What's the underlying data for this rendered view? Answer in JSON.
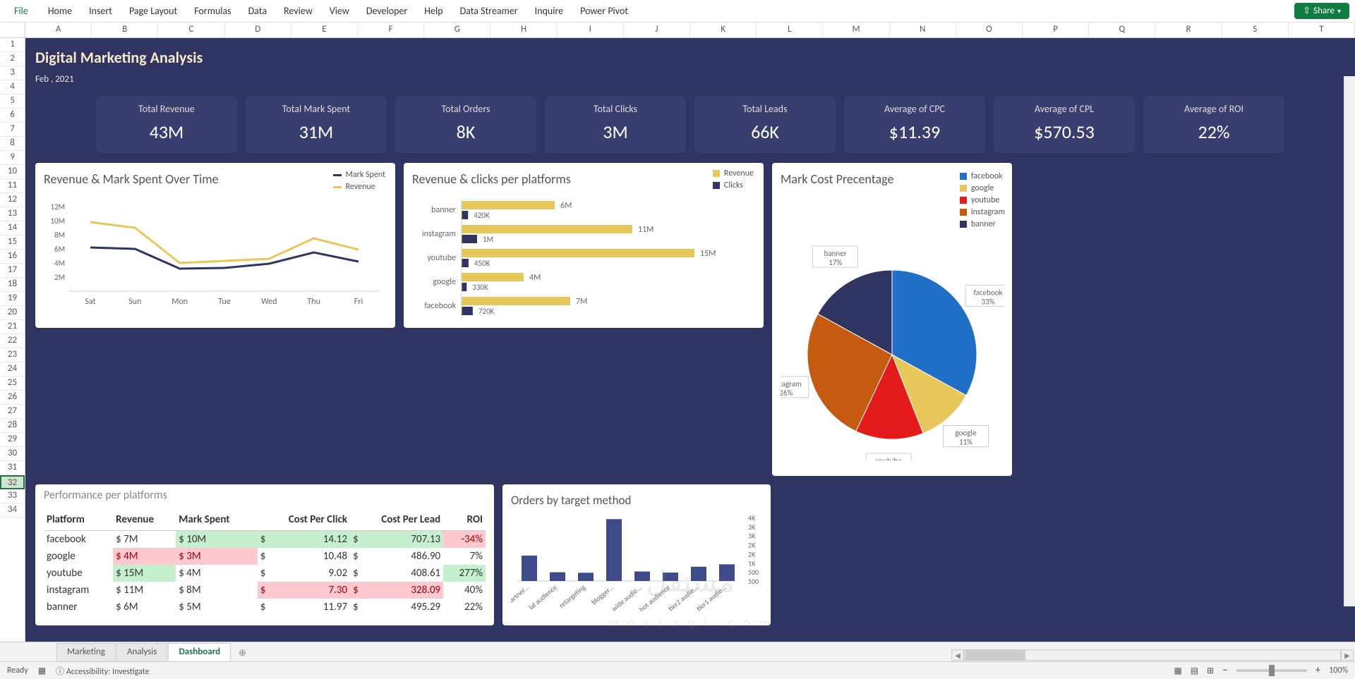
{
  "ribbon": {
    "file": "File",
    "tabs": [
      "Home",
      "Insert",
      "Page Layout",
      "Formulas",
      "Data",
      "Review",
      "View",
      "Developer",
      "Help",
      "Data Streamer",
      "Inquire",
      "Power Pivot"
    ],
    "share": "Share"
  },
  "columns": [
    "A",
    "B",
    "C",
    "D",
    "E",
    "F",
    "G",
    "H",
    "I",
    "J",
    "K",
    "L",
    "M",
    "N",
    "O",
    "P",
    "Q",
    "R",
    "S",
    "T"
  ],
  "rows": 34,
  "selected_row": 32,
  "header": {
    "title": "Digital Marketing Analysis",
    "date": "Feb , 2021"
  },
  "kpis": [
    {
      "label": "Total Revenue",
      "value": "43M"
    },
    {
      "label": "Total Mark Spent",
      "value": "31M"
    },
    {
      "label": "Total Orders",
      "value": "8K"
    },
    {
      "label": "Total Clicks",
      "value": "3M"
    },
    {
      "label": "Total Leads",
      "value": "66K"
    },
    {
      "label": "Average of CPC",
      "value": "$11.39"
    },
    {
      "label": "Average of CPL",
      "value": "$570.53"
    },
    {
      "label": "Average of ROI",
      "value": "22%"
    }
  ],
  "line_chart": {
    "title": "Revenue & Mark Spent Over Time",
    "categories": [
      "Sat",
      "Sun",
      "Mon",
      "Tue",
      "Wed",
      "Thu",
      "Fri"
    ],
    "y_ticks": [
      "2M",
      "4M",
      "6M",
      "8M",
      "10M",
      "12M"
    ],
    "series": [
      {
        "name": "Mark Spent",
        "color": "#2f3560",
        "values": [
          6.2,
          6.0,
          3.2,
          3.3,
          3.9,
          5.5,
          4.2
        ]
      },
      {
        "name": "Revenue",
        "color": "#e8c75a",
        "values": [
          9.8,
          9.0,
          4.0,
          4.3,
          4.6,
          7.5,
          5.9
        ]
      }
    ]
  },
  "hbar_chart": {
    "title": "Revenue & clicks per platforms",
    "legend": [
      {
        "name": "Revenue",
        "color": "#e8c75a"
      },
      {
        "name": "Clicks",
        "color": "#2f3560"
      }
    ],
    "items": [
      {
        "cat": "banner",
        "rev": 6,
        "rev_lbl": "6M",
        "clk": 0.42,
        "clk_lbl": "420K"
      },
      {
        "cat": "instagram",
        "rev": 11,
        "rev_lbl": "11M",
        "clk": 1.0,
        "clk_lbl": "1M"
      },
      {
        "cat": "youtube",
        "rev": 15,
        "rev_lbl": "15M",
        "clk": 0.45,
        "clk_lbl": "450K"
      },
      {
        "cat": "google",
        "rev": 4,
        "rev_lbl": "4M",
        "clk": 0.33,
        "clk_lbl": "330K"
      },
      {
        "cat": "facebook",
        "rev": 7,
        "rev_lbl": "7M",
        "clk": 0.72,
        "clk_lbl": "720K"
      }
    ],
    "max": 15
  },
  "pie_chart": {
    "title": "Mark Cost Precentage",
    "legend": [
      {
        "name": "facebook",
        "color": "#1f6fc4"
      },
      {
        "name": "google",
        "color": "#e8c75a"
      },
      {
        "name": "youtube",
        "color": "#e31b1b"
      },
      {
        "name": "instagram",
        "color": "#c55a11"
      },
      {
        "name": "banner",
        "color": "#2f3560"
      }
    ],
    "slices": [
      {
        "name": "facebook",
        "pct": 33,
        "color": "#1f6fc4"
      },
      {
        "name": "google",
        "pct": 11,
        "color": "#e8c75a"
      },
      {
        "name": "youtube",
        "pct": 13,
        "color": "#e31b1b"
      },
      {
        "name": "instagram",
        "pct": 26,
        "color": "#c55a11"
      },
      {
        "name": "banner",
        "pct": 17,
        "color": "#2f3560"
      }
    ]
  },
  "perf_table": {
    "title": "Performance per platforms",
    "columns": [
      "Platform",
      "Revenue",
      "Mark Spent",
      "Cost Per Click",
      "Cost Per Lead",
      "ROI"
    ],
    "rows": [
      {
        "platform": "facebook",
        "rev": "$ 7M",
        "rev_c": "",
        "ms": "$ 10M",
        "ms_c": "green",
        "cpc": "14.12",
        "cpc_c": "green",
        "cpl": "707.13",
        "cpl_c": "green",
        "roi": "-34%",
        "roi_c": "red"
      },
      {
        "platform": "google",
        "rev": "$ 4M",
        "rev_c": "red",
        "ms": "$ 3M",
        "ms_c": "red",
        "cpc": "10.48",
        "cpc_c": "",
        "cpl": "486.90",
        "cpl_c": "",
        "roi": "7%",
        "roi_c": ""
      },
      {
        "platform": "youtube",
        "rev": "$ 15M",
        "rev_c": "green",
        "ms": "$ 4M",
        "ms_c": "",
        "cpc": "9.02",
        "cpc_c": "",
        "cpl": "408.61",
        "cpl_c": "",
        "roi": "277%",
        "roi_c": "green"
      },
      {
        "platform": "instagram",
        "rev": "$ 11M",
        "rev_c": "",
        "ms": "$ 8M",
        "ms_c": "",
        "cpc": "7.30",
        "cpc_c": "red",
        "cpl": "328.09",
        "cpl_c": "red",
        "roi": "40%",
        "roi_c": ""
      },
      {
        "platform": "banner",
        "rev": "$ 6M",
        "rev_c": "",
        "ms": "$ 5M",
        "ms_c": "",
        "cpc": "11.97",
        "cpc_c": "",
        "cpl": "495.29",
        "cpl_c": "",
        "roi": "22%",
        "roi_c": ""
      }
    ]
  },
  "orders_chart": {
    "title": "Orders by target method",
    "y_ticks": [
      "500",
      "500",
      "1K",
      "2K",
      "2K",
      "3K",
      "3K",
      "4K"
    ],
    "items": [
      {
        "cat": "partner...",
        "v": 1600
      },
      {
        "cat": "lal audience",
        "v": 550
      },
      {
        "cat": "retargeting",
        "v": 520
      },
      {
        "cat": "blogger...",
        "v": 3900
      },
      {
        "cat": "wide audie...",
        "v": 600
      },
      {
        "cat": "hot audience",
        "v": 530
      },
      {
        "cat": "tier2 audie...",
        "v": 900
      },
      {
        "cat": "tier1 audie...",
        "v": 1050
      }
    ],
    "max": 4000,
    "color": "#3f4a8a"
  },
  "sheet_tabs": {
    "tabs": [
      "Marketing",
      "Analysis",
      "Dashboard"
    ],
    "active": 2
  },
  "status": {
    "ready": "Ready",
    "access": "Accessibility: Investigate",
    "zoom": "100%"
  },
  "watermark": "مستقل"
}
